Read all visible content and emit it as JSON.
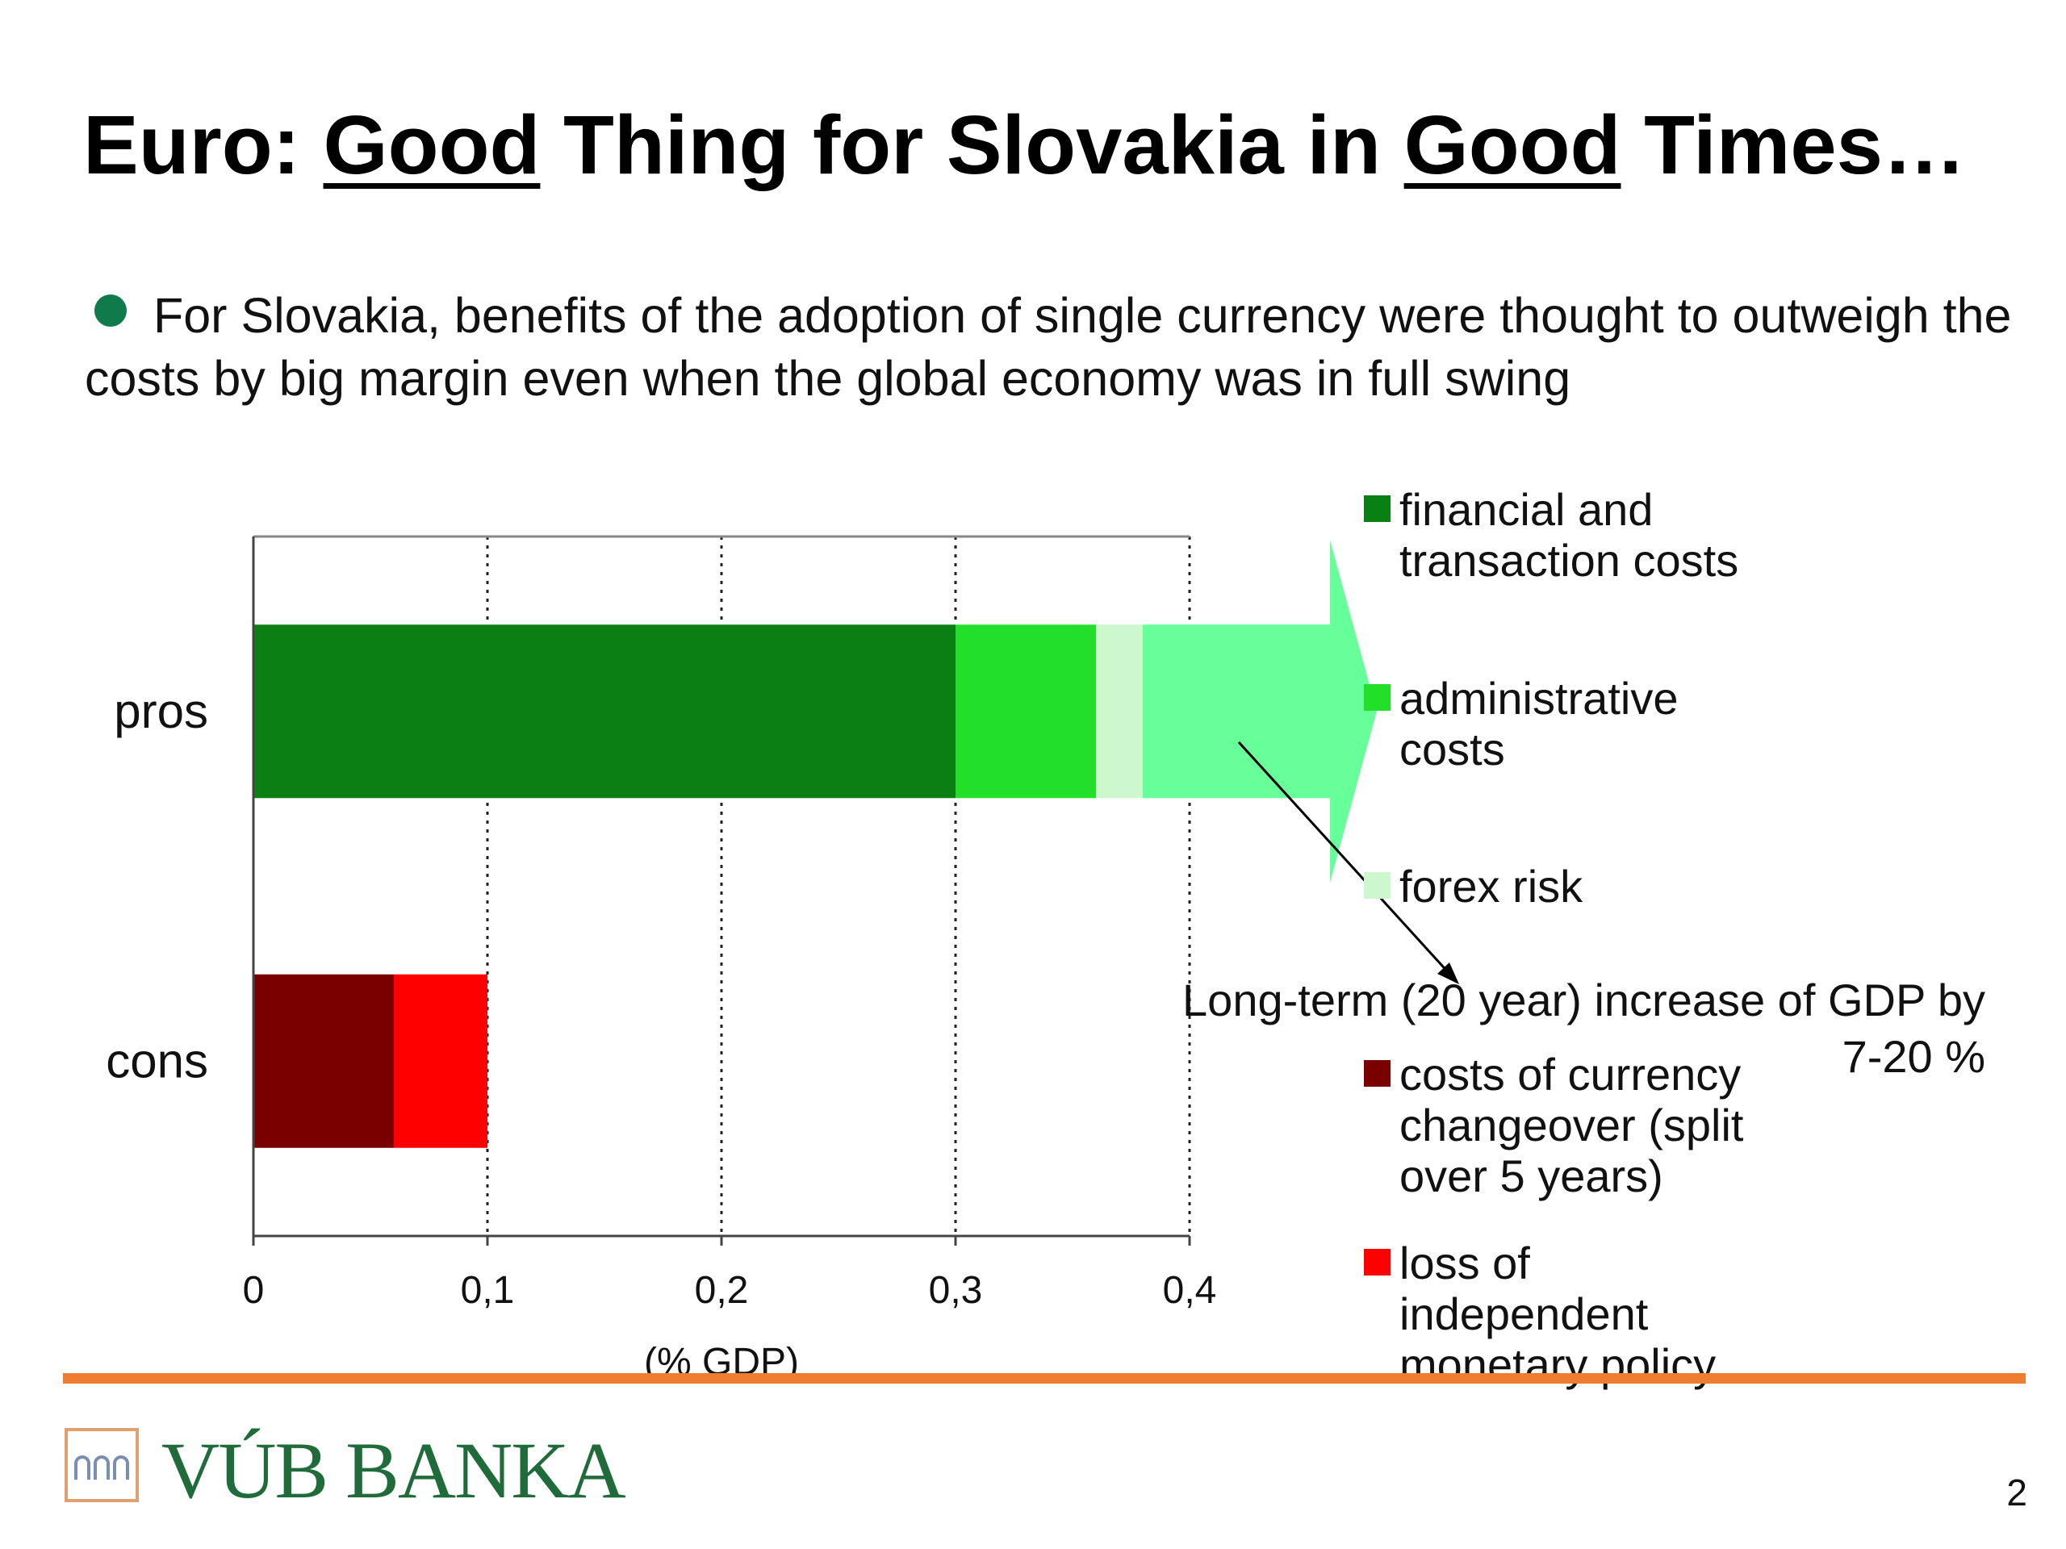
{
  "slide": {
    "title_parts": [
      "Euro: ",
      "Good",
      " Thing for Slovakia in ",
      "Good",
      " Times…"
    ],
    "bullet": "For Slovakia, benefits of the adoption of single currency were thought to outweigh the costs by big margin even when the global economy was in full swing",
    "bullet_color": "#0f7a4a",
    "logo_text": "VÚB BANKA",
    "logo_color": "#1f6b3a",
    "footer_line_color": "#ee7d31",
    "page_number": "2"
  },
  "chart_data": {
    "type": "bar",
    "orientation": "horizontal",
    "stacked": true,
    "categories": [
      "pros",
      "cons"
    ],
    "series": [
      {
        "name": "financial and transaction costs",
        "color": "#0a7f14",
        "values": [
          0.3,
          0
        ]
      },
      {
        "name": "administrative costs",
        "color": "#22e02a",
        "values": [
          0.06,
          0
        ]
      },
      {
        "name": "forex risk",
        "color": "#cdf7cd",
        "values": [
          0.02,
          0
        ]
      },
      {
        "name": "costs of currency changeover (split over 5 years)",
        "color": "#7a0000",
        "values": [
          0,
          0.06
        ]
      },
      {
        "name": "loss of independent monetary policy",
        "color": "#ff0000",
        "values": [
          0,
          0.04
        ]
      }
    ],
    "arrow": {
      "category": "pros",
      "from": 0.38,
      "to": 0.46,
      "color": "#66ff99"
    },
    "xlim": [
      0,
      0.4
    ],
    "xticks": [
      0,
      0.1,
      0.2,
      0.3,
      0.4
    ],
    "xtick_labels": [
      "0",
      "0,1",
      "0,2",
      "0,3",
      "0,4"
    ],
    "xlabel": "(% GDP)",
    "grid": "vertical dotted",
    "legend_position": "right",
    "annotation": {
      "line1": "Long-term (20 year) increase of GDP by",
      "line2": "7-20 %"
    }
  }
}
